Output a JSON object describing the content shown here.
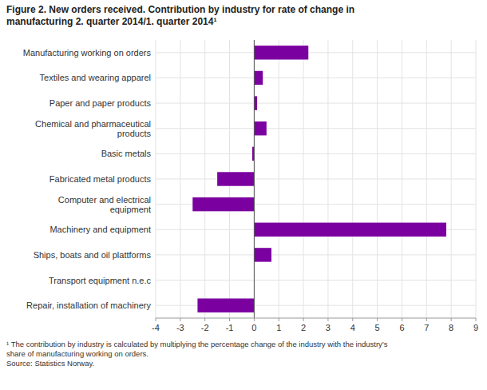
{
  "chart_data": {
    "type": "bar",
    "orientation": "horizontal",
    "title": "Figure 2. New orders received. Contribution by industry for rate of change in\nmanufacturing 2. quarter 2014/1. quarter 2014¹",
    "categories": [
      "Manufacturing working on orders",
      "Textiles and wearing apparel",
      "Paper and paper products",
      "Chemical and pharmaceutical\nproducts",
      "Basic metals",
      "Fabricated metal products",
      "Computer and electrical\nequipment",
      "Machinery and equipment",
      "Ships, boats and oil plattforms",
      "Transport equipment n.e.c",
      "Repair, installation of machinery"
    ],
    "values": [
      2.2,
      0.35,
      0.12,
      0.5,
      -0.08,
      -1.5,
      -2.5,
      7.8,
      0.7,
      0.0,
      -2.3
    ],
    "color": "#7B00A0",
    "xlim": [
      -4,
      9
    ],
    "xticks": [
      -4,
      -3,
      -2,
      -1,
      0,
      1,
      2,
      3,
      4,
      5,
      6,
      7,
      8,
      9
    ],
    "grid": true,
    "annotations": [
      "¹ The contribution by industry is calculated by multiplying the percentage change of the industry with the industry’s\nshare of manufacturing working on orders.\nSource: Statistics Norway."
    ]
  }
}
